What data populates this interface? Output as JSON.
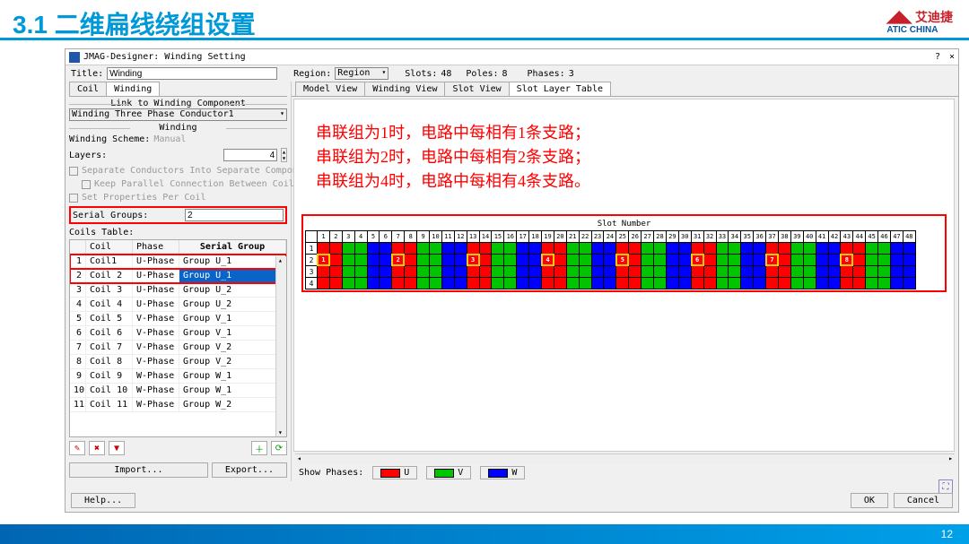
{
  "slide": {
    "section": "3.1 二维扁线绕组设置",
    "page": "12",
    "logo_cn": "艾迪捷",
    "logo_en": "ATIC CHINA"
  },
  "win": {
    "title": "JMAG-Designer: Winding Setting",
    "help_q": "?",
    "close_x": "×",
    "title_lbl": "Title:",
    "title_val": "Winding",
    "region_lbl": "Region:",
    "region_val": "Region",
    "slots_lbl": "Slots:",
    "slots_val": "48",
    "poles_lbl": "Poles:",
    "poles_val": "8",
    "phases_lbl": "Phases:",
    "phases_val": "3"
  },
  "left_tabs": [
    "Coil",
    "Winding"
  ],
  "right_tabs": [
    "Model View",
    "Winding View",
    "Slot View",
    "Slot Layer Table"
  ],
  "left": {
    "link_legend": "Link to Winding Component",
    "link_combo": "Winding Three Phase Conductor1",
    "winding_legend": "Winding",
    "scheme_lbl": "Winding Scheme:",
    "scheme_val": "Manual",
    "layers_lbl": "Layers:",
    "layers_val": "4",
    "chk1": "Separate Conductors Into Separate Components",
    "chk2": "Keep Parallel Connection Between Coil Regions",
    "chk3": "Set Properties Per Coil",
    "sg_lbl": "Serial Groups:",
    "sg_val": "2",
    "coils_lbl": "Coils Table:",
    "head": {
      "c1": "Coil",
      "c2": "Phase",
      "c3": "Serial Group"
    },
    "rows": [
      {
        "n": "1",
        "coil": "Coil1",
        "ph": "U-Phase",
        "g": "Group U_1"
      },
      {
        "n": "2",
        "coil": "Coil 2",
        "ph": "U-Phase",
        "g": "Group U_1",
        "sel": true
      },
      {
        "n": "3",
        "coil": "Coil 3",
        "ph": "U-Phase",
        "g": "Group U_2"
      },
      {
        "n": "4",
        "coil": "Coil 4",
        "ph": "U-Phase",
        "g": "Group U_2"
      },
      {
        "n": "5",
        "coil": "Coil 5",
        "ph": "V-Phase",
        "g": "Group V_1"
      },
      {
        "n": "6",
        "coil": "Coil 6",
        "ph": "V-Phase",
        "g": "Group V_1"
      },
      {
        "n": "7",
        "coil": "Coil 7",
        "ph": "V-Phase",
        "g": "Group V_2"
      },
      {
        "n": "8",
        "coil": "Coil 8",
        "ph": "V-Phase",
        "g": "Group V_2"
      },
      {
        "n": "9",
        "coil": "Coil 9",
        "ph": "W-Phase",
        "g": "Group W_1"
      },
      {
        "n": "10",
        "coil": "Coil 10",
        "ph": "W-Phase",
        "g": "Group W_1"
      },
      {
        "n": "11",
        "coil": "Coil 11",
        "ph": "W-Phase",
        "g": "Group W_2"
      }
    ],
    "import_btn": "Import...",
    "export_btn": "Export..."
  },
  "annot": {
    "l1": "串联组为1时，电路中每相有1条支路；",
    "l2": "串联组为2时，电路中每相有2条支路；",
    "l3": "串联组为4时，电路中每相有4条支路。"
  },
  "slot": {
    "title": "Slot Number",
    "cols": 48,
    "rows": 4,
    "pattern_phase": [
      "r",
      "r",
      "g",
      "g",
      "b",
      "b"
    ],
    "highlights": [
      1,
      7,
      13,
      19,
      25,
      31,
      37,
      43
    ],
    "hl_labels": [
      "1",
      "2",
      "3",
      "4",
      "5",
      "6",
      "7",
      "8"
    ],
    "colors": {
      "r": "#ff0000",
      "g": "#00c400",
      "b": "#0000ff",
      "hl": "#ffcc00"
    }
  },
  "show_phases": {
    "lbl": "Show Phases:",
    "u": "U",
    "v": "V",
    "w": "W"
  },
  "btns": {
    "help": "Help...",
    "ok": "OK",
    "cancel": "Cancel"
  }
}
